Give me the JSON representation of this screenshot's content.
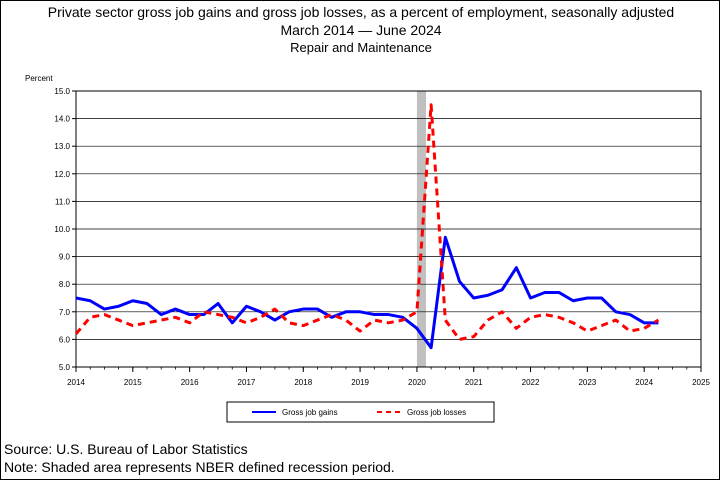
{
  "titles": {
    "line1": "Private sector gross job gains and gross job losses, as a percent of employment, seasonally adjusted",
    "line2": "March 2014 — June 2024",
    "line3": "Repair and Maintenance"
  },
  "footer": {
    "source": "Source: U.S. Bureau of Labor Statistics",
    "note": "Note: Shaded area represents NBER defined recession period."
  },
  "chart_data": {
    "type": "line",
    "title": "Private sector gross job gains and gross job losses, as a percent of employment, seasonally adjusted",
    "subtitle": "Repair and Maintenance",
    "ylabel": "Percent",
    "xlabel": "",
    "xlim": [
      2014,
      2025
    ],
    "ylim": [
      5.0,
      15.0
    ],
    "xticks": [
      "2014",
      "2015",
      "2016",
      "2017",
      "2018",
      "2019",
      "2020",
      "2021",
      "2022",
      "2023",
      "2024",
      "2025"
    ],
    "yticks": [
      "5.0",
      "6.0",
      "7.0",
      "8.0",
      "9.0",
      "10.0",
      "11.0",
      "12.0",
      "13.0",
      "14.0",
      "15.0"
    ],
    "grid": "horizontal",
    "legend_position": "bottom",
    "recession_band": [
      2020.0,
      2020.16
    ],
    "x": [
      2014.0,
      2014.25,
      2014.5,
      2014.75,
      2015.0,
      2015.25,
      2015.5,
      2015.75,
      2016.0,
      2016.25,
      2016.5,
      2016.75,
      2017.0,
      2017.25,
      2017.5,
      2017.75,
      2018.0,
      2018.25,
      2018.5,
      2018.75,
      2019.0,
      2019.25,
      2019.5,
      2019.75,
      2020.0,
      2020.25,
      2020.5,
      2020.75,
      2021.0,
      2021.25,
      2021.5,
      2021.75,
      2022.0,
      2022.25,
      2022.5,
      2022.75,
      2023.0,
      2023.25,
      2023.5,
      2023.75,
      2024.0,
      2024.25
    ],
    "series": [
      {
        "name": "Gross job gains",
        "color": "#0000ff",
        "style": "solid",
        "values": [
          7.5,
          7.4,
          7.1,
          7.2,
          7.4,
          7.3,
          6.9,
          7.1,
          6.9,
          6.9,
          7.3,
          6.6,
          7.2,
          7.0,
          6.7,
          7.0,
          7.1,
          7.1,
          6.8,
          7.0,
          7.0,
          6.9,
          6.9,
          6.8,
          6.4,
          5.7,
          9.7,
          8.1,
          7.5,
          7.6,
          7.8,
          8.6,
          7.5,
          7.7,
          7.7,
          7.4,
          7.5,
          7.5,
          7.0,
          6.9,
          6.6,
          6.6
        ]
      },
      {
        "name": "Gross job losses",
        "color": "#ff0000",
        "style": "dashed",
        "values": [
          6.2,
          6.8,
          6.9,
          6.7,
          6.5,
          6.6,
          6.7,
          6.8,
          6.6,
          7.0,
          6.9,
          6.8,
          6.6,
          6.8,
          7.1,
          6.6,
          6.5,
          6.7,
          6.9,
          6.7,
          6.3,
          6.7,
          6.6,
          6.7,
          7.0,
          14.5,
          6.7,
          6.0,
          6.1,
          6.7,
          7.0,
          6.4,
          6.8,
          6.9,
          6.8,
          6.6,
          6.3,
          6.5,
          6.7,
          6.3,
          6.4,
          6.7
        ]
      }
    ]
  }
}
